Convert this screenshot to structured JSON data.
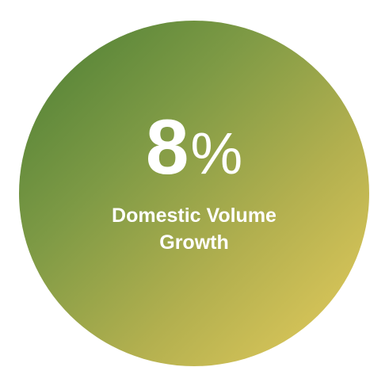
{
  "stat": {
    "number": "8",
    "unit": "%"
  },
  "caption": {
    "line1": "Domestic Volume",
    "line2": "Growth"
  },
  "colors": {
    "gradient_start": "#4a7e34",
    "gradient_end": "#e7cd5d",
    "text": "#ffffff"
  }
}
